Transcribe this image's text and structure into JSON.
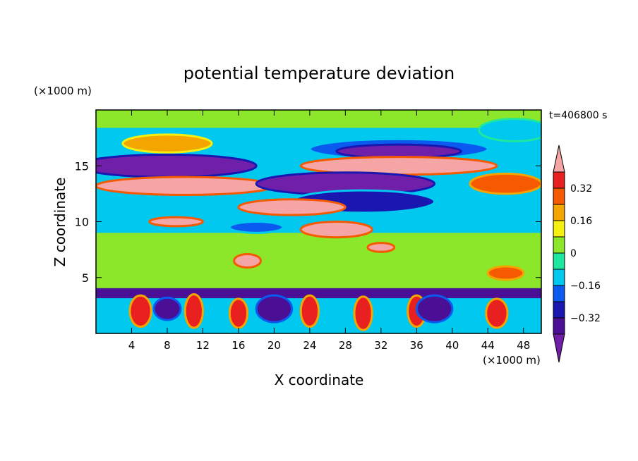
{
  "chart_data": {
    "type": "heatmap",
    "title": "potential temperature deviation",
    "xlabel": "X coordinate",
    "ylabel": "Z coordinate",
    "x_unit": "(×1000 m)",
    "y_unit": "(×1000 m)",
    "time_label": "t=406800 s",
    "xlim": [
      0,
      50
    ],
    "ylim": [
      0,
      20
    ],
    "x_ticks": [
      4,
      8,
      12,
      16,
      20,
      24,
      28,
      32,
      36,
      40,
      44,
      48
    ],
    "y_ticks": [
      5,
      10,
      15
    ],
    "colorbar": {
      "levels": [
        -0.4,
        -0.32,
        -0.24,
        -0.16,
        -0.08,
        0,
        0.08,
        0.16,
        0.24,
        0.32,
        0.4
      ],
      "labels": [
        "0.32",
        "0.16",
        "0",
        "−0.16",
        "−0.32"
      ],
      "label_values": [
        0.32,
        0.16,
        0,
        -0.16,
        -0.32
      ],
      "colors": [
        "#7020a8",
        "#4b0f96",
        "#1a16b0",
        "#0a5af0",
        "#00c8ef",
        "#1ee8a0",
        "#8ce62a",
        "#f5f010",
        "#f5a500",
        "#f55a00",
        "#e82020",
        "#f5a5a5"
      ]
    },
    "regions": [
      {
        "value": 0.05,
        "shape": "band",
        "z": 19.5,
        "h": 2.2
      },
      {
        "value": -0.12,
        "shape": "ellipse",
        "x": 47,
        "z": 18.2,
        "rx": 4,
        "rz": 1.0
      },
      {
        "value": 0.18,
        "shape": "ellipse",
        "x": 8,
        "z": 17.0,
        "rx": 5,
        "rz": 0.8
      },
      {
        "value": -0.2,
        "shape": "ellipse",
        "x": 34,
        "z": 16.5,
        "rx": 10,
        "rz": 0.9
      },
      {
        "value": -0.45,
        "shape": "ellipse",
        "x": 34,
        "z": 16.3,
        "rx": 7,
        "rz": 0.6
      },
      {
        "value": -0.45,
        "shape": "ellipse",
        "x": 8,
        "z": 15.0,
        "rx": 10,
        "rz": 1.0
      },
      {
        "value": 0.45,
        "shape": "ellipse",
        "x": 34,
        "z": 15.0,
        "rx": 11,
        "rz": 0.8
      },
      {
        "value": 0.45,
        "shape": "ellipse",
        "x": 10,
        "z": 13.2,
        "rx": 10,
        "rz": 0.8
      },
      {
        "value": -0.45,
        "shape": "ellipse",
        "x": 28,
        "z": 13.4,
        "rx": 10,
        "rz": 1.0
      },
      {
        "value": 0.3,
        "shape": "ellipse",
        "x": 46,
        "z": 13.4,
        "rx": 4,
        "rz": 0.9
      },
      {
        "value": -0.25,
        "shape": "ellipse",
        "x": 30,
        "z": 11.8,
        "rx": 8,
        "rz": 1.0
      },
      {
        "value": 0.45,
        "shape": "ellipse",
        "x": 22,
        "z": 11.3,
        "rx": 6,
        "rz": 0.7
      },
      {
        "value": 0.45,
        "shape": "ellipse",
        "x": 27,
        "z": 9.3,
        "rx": 4,
        "rz": 0.7
      },
      {
        "value": 0.4,
        "shape": "ellipse",
        "x": 9,
        "z": 10.0,
        "rx": 3,
        "rz": 0.4
      },
      {
        "value": -0.18,
        "shape": "ellipse",
        "x": 18,
        "z": 9.5,
        "rx": 3,
        "rz": 0.5
      },
      {
        "value": 0.45,
        "shape": "ellipse",
        "x": 17,
        "z": 6.5,
        "rx": 1.5,
        "rz": 0.6
      },
      {
        "value": 0.45,
        "shape": "ellipse",
        "x": 32,
        "z": 7.7,
        "rx": 1.5,
        "rz": 0.4
      },
      {
        "value": 0.3,
        "shape": "ellipse",
        "x": 46,
        "z": 5.4,
        "rx": 2,
        "rz": 0.6
      },
      {
        "value": -0.4,
        "shape": "band",
        "z": 3.6,
        "h": 0.9
      },
      {
        "value": 0.35,
        "shape": "ellipse",
        "x": 5,
        "z": 2.0,
        "rx": 1.2,
        "rz": 1.4
      },
      {
        "value": 0.35,
        "shape": "ellipse",
        "x": 11,
        "z": 2.0,
        "rx": 1.0,
        "rz": 1.5
      },
      {
        "value": 0.35,
        "shape": "ellipse",
        "x": 16,
        "z": 1.8,
        "rx": 1.0,
        "rz": 1.3
      },
      {
        "value": 0.35,
        "shape": "ellipse",
        "x": 24,
        "z": 2.0,
        "rx": 1.0,
        "rz": 1.4
      },
      {
        "value": 0.35,
        "shape": "ellipse",
        "x": 30,
        "z": 1.8,
        "rx": 1.0,
        "rz": 1.5
      },
      {
        "value": 0.35,
        "shape": "ellipse",
        "x": 36,
        "z": 2.0,
        "rx": 1.0,
        "rz": 1.4
      },
      {
        "value": 0.35,
        "shape": "ellipse",
        "x": 45,
        "z": 1.8,
        "rx": 1.2,
        "rz": 1.3
      },
      {
        "value": -0.35,
        "shape": "ellipse",
        "x": 20,
        "z": 2.2,
        "rx": 2,
        "rz": 1.2
      },
      {
        "value": -0.35,
        "shape": "ellipse",
        "x": 38,
        "z": 2.2,
        "rx": 2,
        "rz": 1.2
      },
      {
        "value": -0.35,
        "shape": "ellipse",
        "x": 8,
        "z": 2.2,
        "rx": 1.5,
        "rz": 1.0
      }
    ]
  }
}
